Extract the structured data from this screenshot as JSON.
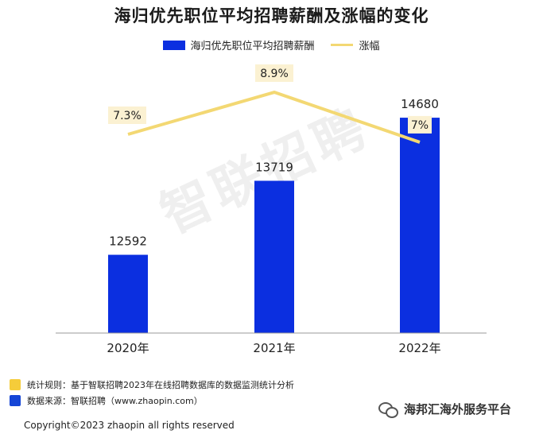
{
  "colors": {
    "bar": "#0b2fe0",
    "line": "#f3d873",
    "label_box": "#fbf1d2",
    "note_yellow": "#f5cc3a",
    "note_blue": "#1546d6"
  },
  "legend": {
    "bar_label": "海归优先职位平均招聘薪酬",
    "line_label": "涨幅"
  },
  "watermark": "智联招聘",
  "notes": [
    {
      "text": "统计规则：基于智联招聘2023年在线招聘数据库的数据监测统计分析",
      "color": "#f5cc3a"
    },
    {
      "text": "数据来源：智联招聘（www.zhaopin.com）",
      "color": "#1546d6"
    }
  ],
  "copyright": "Copyright©2023 zhaopin all rights reserved",
  "brand": {
    "text": "海邦汇海外服务平台",
    "icon": "wechat-icon"
  },
  "chart_data": {
    "type": "bar",
    "title": "海归优先职位平均招聘薪酬及涨幅的变化",
    "categories": [
      "2020年",
      "2021年",
      "2022年"
    ],
    "series": [
      {
        "name": "海归优先职位平均招聘薪酬",
        "type": "bar",
        "values": [
          12592,
          13719,
          14680
        ],
        "labels": [
          "12592",
          "13719",
          "14680"
        ]
      },
      {
        "name": "涨幅",
        "type": "line",
        "values": [
          7.3,
          8.9,
          7.0
        ],
        "labels": [
          "7.3%",
          "8.9%",
          "7%"
        ]
      }
    ],
    "legend_position": "top-center",
    "grid": false
  }
}
